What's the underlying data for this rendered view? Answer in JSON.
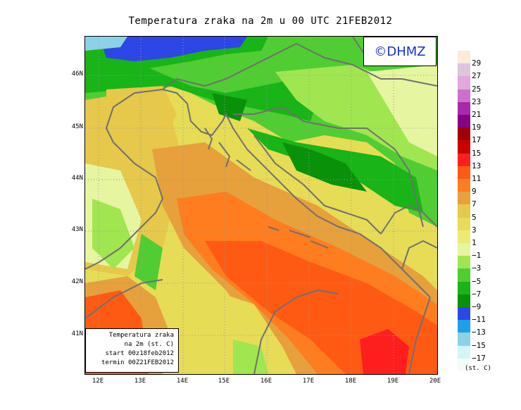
{
  "title": "Temperatura zraka na 2m u 00 UTC 21FEB2012",
  "logo": "©DHMZ",
  "info": [
    "Temperatura zraka",
    "na 2m (st. C)",
    "start 00z18feb2012",
    "termin 00Z21FEB2012"
  ],
  "lat_labels": [
    "46N",
    "45N",
    "44N",
    "43N",
    "42N",
    "41N"
  ],
  "lon_labels": [
    "12E",
    "13E",
    "14E",
    "15E",
    "16E",
    "17E",
    "18E",
    "19E",
    "20E"
  ],
  "legend": {
    "unit": "(st. C)",
    "labels": [
      "29",
      "27",
      "25",
      "23",
      "21",
      "19",
      "17",
      "15",
      "13",
      "11",
      "9",
      "7",
      "5",
      "3",
      "1",
      "−1",
      "−3",
      "−5",
      "−7",
      "−9",
      "−11",
      "−13",
      "−15",
      "−17"
    ],
    "colors": [
      "#fcebd9",
      "#dcc6dc",
      "#e2a7dd",
      "#cc70cc",
      "#a82aa8",
      "#870087",
      "#a00000",
      "#cd0000",
      "#ff1e1e",
      "#ff5a14",
      "#ff7d1e",
      "#e6a03c",
      "#e6c84b",
      "#e6dc55",
      "#ebeb73",
      "#e6f5a0",
      "#a0e650",
      "#50cd32",
      "#18b418",
      "#0a910a",
      "#2d46e6",
      "#1ea0e6",
      "#8cd2e6",
      "#d2f5f5",
      "#f5fafa"
    ]
  },
  "colors": {
    "cold_blue": "#2d46e6",
    "dark_green": "#0a910a",
    "green": "#18b418",
    "light_green": "#50cd32",
    "pale_green": "#a0e650",
    "pale_yellow": "#e6f5a0",
    "yellow": "#e6dc55",
    "gold": "#e6c84b",
    "orange_light": "#e6a03c",
    "orange": "#ff7d1e",
    "orange_red": "#ff5a14",
    "red": "#ff1e1e",
    "coast": "#707070"
  }
}
